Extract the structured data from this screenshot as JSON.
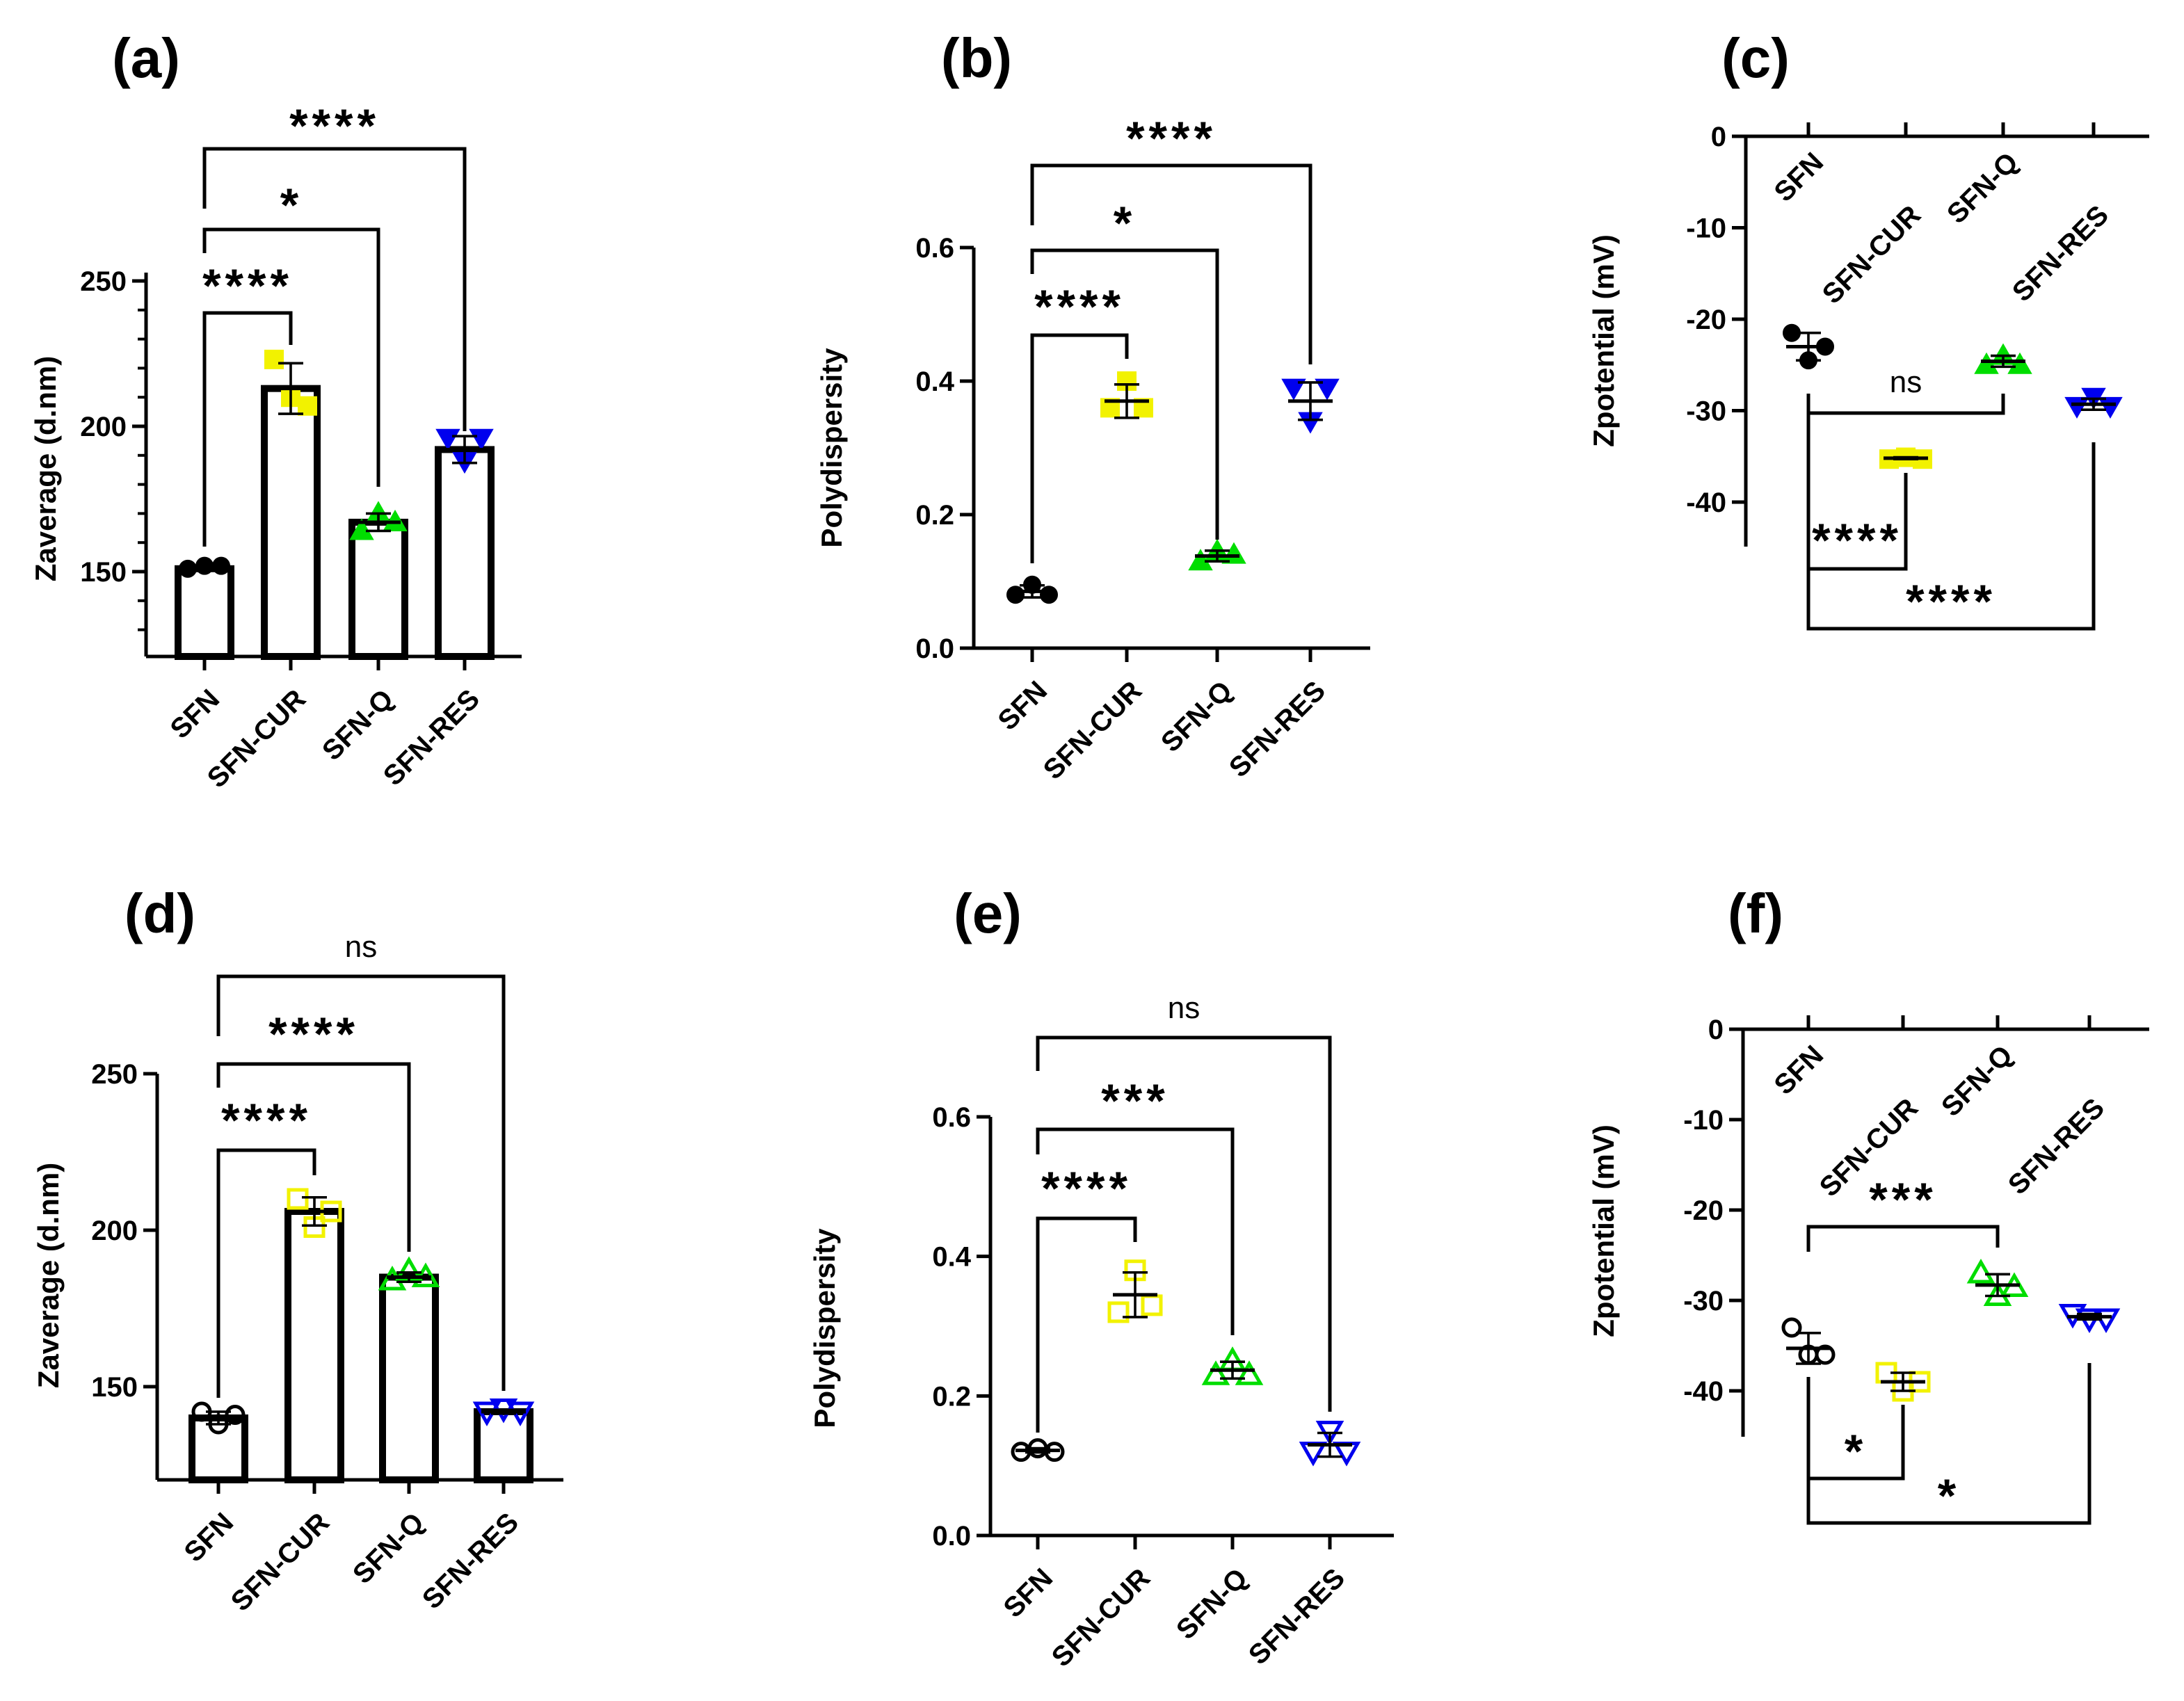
{
  "colors": {
    "SFN": "#000000",
    "SFN-CUR": "#f2f200",
    "SFN-Q": "#00dd00",
    "SFN-RES": "#0000ee"
  },
  "chart_data": [
    {
      "id": "a",
      "panel_label": "(a)",
      "type": "bar",
      "ylabel": "Zaverage  (d.nm)",
      "ylim": [
        120,
        250
      ],
      "yticks": [
        "150",
        "200",
        "250"
      ],
      "ytick_values": [
        150,
        200,
        250
      ],
      "minor_ticks": true,
      "axis_position": "bottom",
      "marker_fill": "filled",
      "categories": [
        "SFN",
        "SFN-CUR",
        "SFN-Q",
        "SFN-RES"
      ],
      "markers": [
        "circle",
        "square",
        "triangle-up",
        "triangle-down"
      ],
      "points": [
        [
          151,
          152,
          152
        ],
        [
          223,
          210,
          207
        ],
        [
          164,
          170,
          167
        ],
        [
          196,
          188,
          196
        ]
      ],
      "means": [
        151,
        213,
        167,
        192
      ],
      "sd": [
        0.6,
        8.7,
        3,
        4.6
      ],
      "comparisons": [
        {
          "from": "SFN",
          "to": "SFN-CUR",
          "label": "****"
        },
        {
          "from": "SFN",
          "to": "SFN-Q",
          "label": "*"
        },
        {
          "from": "SFN",
          "to": "SFN-RES",
          "label": "****"
        }
      ]
    },
    {
      "id": "b",
      "panel_label": "(b)",
      "type": "scatter",
      "ylabel": "Polydispersity",
      "ylim": [
        0,
        0.6
      ],
      "yticks": [
        "0.0",
        "0.2",
        "0.4",
        "0.6"
      ],
      "ytick_values": [
        0,
        0.2,
        0.4,
        0.6
      ],
      "minor_ticks": false,
      "axis_position": "bottom",
      "marker_fill": "filled",
      "categories": [
        "SFN",
        "SFN-CUR",
        "SFN-Q",
        "SFN-RES"
      ],
      "markers": [
        "circle",
        "square",
        "triangle-up",
        "triangle-down"
      ],
      "points": [
        [
          0.08,
          0.095,
          0.08
        ],
        [
          0.36,
          0.4,
          0.36
        ],
        [
          0.13,
          0.145,
          0.14
        ],
        [
          0.39,
          0.34,
          0.39
        ]
      ],
      "means": [
        0.085,
        0.37,
        0.138,
        0.37
      ],
      "sd": [
        0.009,
        0.025,
        0.008,
        0.028
      ],
      "comparisons": [
        {
          "from": "SFN",
          "to": "SFN-CUR",
          "label": "****"
        },
        {
          "from": "SFN",
          "to": "SFN-Q",
          "label": "*"
        },
        {
          "from": "SFN",
          "to": "SFN-RES",
          "label": "****"
        }
      ]
    },
    {
      "id": "c",
      "panel_label": "(c)",
      "type": "scatter",
      "ylabel": "Zpotential (mV)",
      "ylim": [
        -45,
        0
      ],
      "yticks": [
        "0",
        "-10",
        "-20",
        "-30",
        "-40"
      ],
      "ytick_values": [
        0,
        -10,
        -20,
        -30,
        -40
      ],
      "minor_ticks": false,
      "axis_position": "top",
      "marker_fill": "filled",
      "categories": [
        "SFN",
        "SFN-CUR",
        "SFN-Q",
        "SFN-RES"
      ],
      "markers": [
        "circle",
        "square",
        "triangle-up",
        "triangle-down"
      ],
      "points": [
        [
          -21.5,
          -24.5,
          -23
        ],
        [
          -35.3,
          -35.1,
          -35.3
        ],
        [
          -25,
          -24,
          -25
        ],
        [
          -29.5,
          -28.5,
          -29.5
        ]
      ],
      "means": [
        -23,
        -35.2,
        -24.6,
        -29.3
      ],
      "sd": [
        1.5,
        0.1,
        0.6,
        0.6
      ],
      "comparisons": [
        {
          "from": "SFN",
          "to": "SFN-Q",
          "label": "ns"
        },
        {
          "from": "SFN",
          "to": "SFN-CUR",
          "label": "****"
        },
        {
          "from": "SFN",
          "to": "SFN-RES",
          "label": "****"
        }
      ]
    },
    {
      "id": "d",
      "panel_label": "(d)",
      "type": "bar",
      "ylabel": "Zaverage  (d.nm)",
      "ylim": [
        120,
        250
      ],
      "yticks": [
        "150",
        "200",
        "250"
      ],
      "ytick_values": [
        150,
        200,
        250
      ],
      "minor_ticks": false,
      "axis_position": "bottom",
      "marker_fill": "open",
      "categories": [
        "SFN",
        "SFN-CUR",
        "SFN-Q",
        "SFN-RES"
      ],
      "markers": [
        "circle",
        "square",
        "triangle-up",
        "triangle-down"
      ],
      "points": [
        [
          142,
          138,
          141
        ],
        [
          210,
          201,
          206
        ],
        [
          184,
          187,
          185
        ],
        [
          142,
          143,
          142
        ]
      ],
      "means": [
        140,
        206,
        185,
        142
      ],
      "sd": [
        2,
        4.5,
        1.5,
        0.6
      ],
      "comparisons": [
        {
          "from": "SFN",
          "to": "SFN-CUR",
          "label": "****"
        },
        {
          "from": "SFN",
          "to": "SFN-Q",
          "label": "****"
        },
        {
          "from": "SFN",
          "to": "SFN-RES",
          "label": "ns"
        }
      ]
    },
    {
      "id": "e",
      "panel_label": "(e)",
      "type": "scatter",
      "ylabel": "Polydispersity",
      "ylim": [
        0,
        0.6
      ],
      "yticks": [
        "0.0",
        "0.2",
        "0.4",
        "0.6"
      ],
      "ytick_values": [
        0,
        0.2,
        0.4,
        0.6
      ],
      "minor_ticks": false,
      "axis_position": "bottom",
      "marker_fill": "open",
      "categories": [
        "SFN",
        "SFN-CUR",
        "SFN-Q",
        "SFN-RES"
      ],
      "markers": [
        "circle",
        "square",
        "triangle-up",
        "triangle-down"
      ],
      "points": [
        [
          0.12,
          0.125,
          0.12
        ],
        [
          0.32,
          0.38,
          0.33
        ],
        [
          0.23,
          0.25,
          0.23
        ],
        [
          0.12,
          0.15,
          0.12
        ]
      ],
      "means": [
        0.122,
        0.345,
        0.237,
        0.13
      ],
      "sd": [
        0.003,
        0.032,
        0.012,
        0.017
      ],
      "comparisons": [
        {
          "from": "SFN",
          "to": "SFN-CUR",
          "label": "****"
        },
        {
          "from": "SFN",
          "to": "SFN-Q",
          "label": "***"
        },
        {
          "from": "SFN",
          "to": "SFN-RES",
          "label": "ns"
        }
      ]
    },
    {
      "id": "f",
      "panel_label": "(f)",
      "type": "scatter",
      "ylabel": "Zpotential (mV)",
      "ylim": [
        -45,
        0
      ],
      "yticks": [
        "0",
        "-10",
        "-20",
        "-30",
        "-40"
      ],
      "ytick_values": [
        0,
        -10,
        -20,
        -30,
        -40
      ],
      "minor_ticks": false,
      "axis_position": "top",
      "marker_fill": "open",
      "categories": [
        "SFN",
        "SFN-CUR",
        "SFN-Q",
        "SFN-RES"
      ],
      "markers": [
        "circle",
        "square",
        "triangle-up",
        "triangle-down"
      ],
      "points": [
        [
          -33,
          -36,
          -36
        ],
        [
          -38,
          -40,
          -39
        ],
        [
          -27,
          -29.5,
          -28.5
        ],
        [
          -31.5,
          -32,
          -32
        ]
      ],
      "means": [
        -35.3,
        -39,
        -28.3,
        -31.8
      ],
      "sd": [
        1.7,
        1,
        1.2,
        0.3
      ],
      "comparisons": [
        {
          "from": "SFN",
          "to": "SFN-Q",
          "label": "***"
        },
        {
          "from": "SFN",
          "to": "SFN-CUR",
          "label": "*"
        },
        {
          "from": "SFN",
          "to": "SFN-RES",
          "label": "*"
        }
      ]
    }
  ]
}
